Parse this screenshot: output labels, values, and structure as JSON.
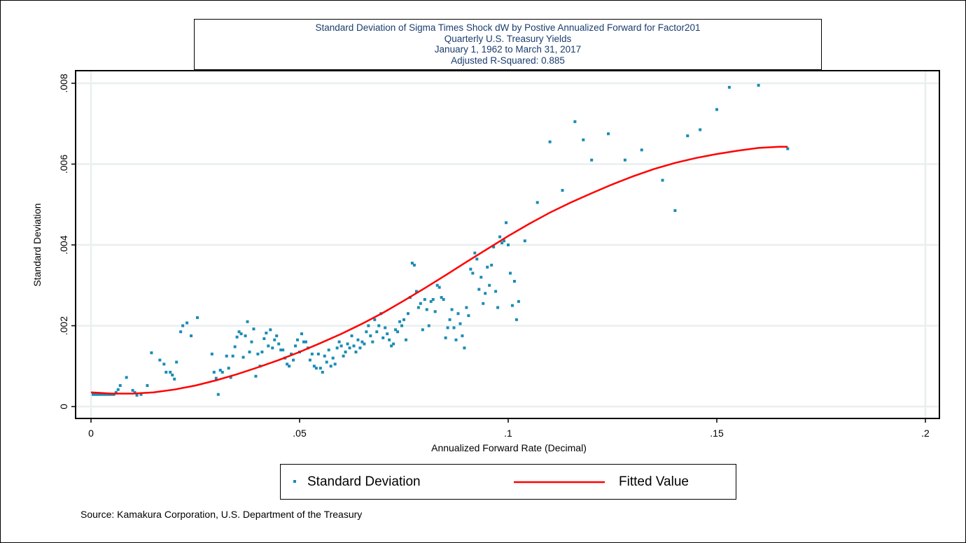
{
  "chart_data": {
    "type": "scatter",
    "title_lines": [
      "Standard Deviation of Sigma Times Shock dW by Postive Annualized Forward for Factor201",
      "Quarterly U.S. Treasury Yields",
      "January 1, 1962 to March 31, 2017",
      "Adjusted R-Squared: 0.885"
    ],
    "xlabel": "Annualized Forward Rate (Decimal)",
    "ylabel": "Standard Deviation",
    "xlim": [
      0,
      0.2
    ],
    "ylim": [
      0,
      0.008
    ],
    "x_ticks": [
      "0",
      ".05",
      ".1",
      ".15",
      ".2"
    ],
    "y_ticks": [
      "0",
      ".002",
      ".004",
      ".006",
      ".008"
    ],
    "grid": true,
    "legend_position": "bottom",
    "series": [
      {
        "name": "Standard Deviation",
        "kind": "scatter",
        "color": "#1a8cb4",
        "points": [
          [
            0.0005,
            0.0003
          ],
          [
            0.001,
            0.0003
          ],
          [
            0.0015,
            0.0003
          ],
          [
            0.002,
            0.0003
          ],
          [
            0.0025,
            0.0003
          ],
          [
            0.003,
            0.0003
          ],
          [
            0.0035,
            0.0003
          ],
          [
            0.004,
            0.0003
          ],
          [
            0.0045,
            0.0003
          ],
          [
            0.005,
            0.0003
          ],
          [
            0.0055,
            0.0003
          ],
          [
            0.006,
            0.00035
          ],
          [
            0.0065,
            0.00042
          ],
          [
            0.007,
            0.00052
          ],
          [
            0.0085,
            0.00072
          ],
          [
            0.01,
            0.0004
          ],
          [
            0.0105,
            0.00035
          ],
          [
            0.011,
            0.00028
          ],
          [
            0.012,
            0.0003
          ],
          [
            0.0135,
            0.00052
          ],
          [
            0.0145,
            0.00133
          ],
          [
            0.0165,
            0.00115
          ],
          [
            0.0175,
            0.00105
          ],
          [
            0.018,
            0.00085
          ],
          [
            0.019,
            0.00085
          ],
          [
            0.0195,
            0.00078
          ],
          [
            0.02,
            0.00068
          ],
          [
            0.0205,
            0.0011
          ],
          [
            0.0215,
            0.00185
          ],
          [
            0.022,
            0.002
          ],
          [
            0.023,
            0.00207
          ],
          [
            0.024,
            0.00175
          ],
          [
            0.0255,
            0.0022
          ],
          [
            0.029,
            0.0013
          ],
          [
            0.0295,
            0.00085
          ],
          [
            0.03,
            0.0007
          ],
          [
            0.0305,
            0.0003
          ],
          [
            0.031,
            0.0009
          ],
          [
            0.0315,
            0.00085
          ],
          [
            0.0325,
            0.00125
          ],
          [
            0.033,
            0.00095
          ],
          [
            0.0335,
            0.00072
          ],
          [
            0.034,
            0.00125
          ],
          [
            0.0345,
            0.00148
          ],
          [
            0.035,
            0.00172
          ],
          [
            0.0355,
            0.00185
          ],
          [
            0.036,
            0.0018
          ],
          [
            0.0365,
            0.00122
          ],
          [
            0.037,
            0.00175
          ],
          [
            0.0375,
            0.0021
          ],
          [
            0.038,
            0.00135
          ],
          [
            0.0385,
            0.0016
          ],
          [
            0.039,
            0.00192
          ],
          [
            0.0395,
            0.00075
          ],
          [
            0.04,
            0.0013
          ],
          [
            0.0405,
            0.001
          ],
          [
            0.041,
            0.00135
          ],
          [
            0.0415,
            0.00168
          ],
          [
            0.042,
            0.00182
          ],
          [
            0.0425,
            0.0015
          ],
          [
            0.043,
            0.0019
          ],
          [
            0.0435,
            0.00145
          ],
          [
            0.044,
            0.00165
          ],
          [
            0.0445,
            0.00175
          ],
          [
            0.045,
            0.00155
          ],
          [
            0.0455,
            0.0014
          ],
          [
            0.046,
            0.0014
          ],
          [
            0.0465,
            0.0012
          ],
          [
            0.047,
            0.00105
          ],
          [
            0.0475,
            0.001
          ],
          [
            0.048,
            0.0013
          ],
          [
            0.0485,
            0.00115
          ],
          [
            0.049,
            0.0015
          ],
          [
            0.0495,
            0.00165
          ],
          [
            0.05,
            0.00135
          ],
          [
            0.0505,
            0.0018
          ],
          [
            0.051,
            0.0016
          ],
          [
            0.0515,
            0.0016
          ],
          [
            0.052,
            0.00145
          ],
          [
            0.0525,
            0.00115
          ],
          [
            0.053,
            0.0013
          ],
          [
            0.0535,
            0.001
          ],
          [
            0.054,
            0.00095
          ],
          [
            0.0545,
            0.0013
          ],
          [
            0.055,
            0.00095
          ],
          [
            0.0555,
            0.00085
          ],
          [
            0.056,
            0.00125
          ],
          [
            0.0565,
            0.0011
          ],
          [
            0.057,
            0.0014
          ],
          [
            0.0575,
            0.001
          ],
          [
            0.058,
            0.0012
          ],
          [
            0.0585,
            0.00105
          ],
          [
            0.059,
            0.00145
          ],
          [
            0.0595,
            0.0016
          ],
          [
            0.06,
            0.0015
          ],
          [
            0.0605,
            0.00125
          ],
          [
            0.061,
            0.00135
          ],
          [
            0.0615,
            0.00155
          ],
          [
            0.062,
            0.00145
          ],
          [
            0.0625,
            0.00175
          ],
          [
            0.063,
            0.0015
          ],
          [
            0.0635,
            0.00135
          ],
          [
            0.064,
            0.00165
          ],
          [
            0.0645,
            0.00145
          ],
          [
            0.065,
            0.0016
          ],
          [
            0.0655,
            0.00155
          ],
          [
            0.066,
            0.00185
          ],
          [
            0.0665,
            0.002
          ],
          [
            0.067,
            0.00175
          ],
          [
            0.0675,
            0.0016
          ],
          [
            0.068,
            0.00215
          ],
          [
            0.0685,
            0.00185
          ],
          [
            0.069,
            0.002
          ],
          [
            0.0695,
            0.0023
          ],
          [
            0.07,
            0.0017
          ],
          [
            0.0705,
            0.00195
          ],
          [
            0.071,
            0.0018
          ],
          [
            0.0715,
            0.00165
          ],
          [
            0.072,
            0.0015
          ],
          [
            0.0725,
            0.00155
          ],
          [
            0.073,
            0.0019
          ],
          [
            0.0735,
            0.00185
          ],
          [
            0.074,
            0.0021
          ],
          [
            0.0745,
            0.002
          ],
          [
            0.075,
            0.00215
          ],
          [
            0.0755,
            0.00165
          ],
          [
            0.076,
            0.0023
          ],
          [
            0.0765,
            0.0027
          ],
          [
            0.077,
            0.00355
          ],
          [
            0.0775,
            0.0035
          ],
          [
            0.078,
            0.00285
          ],
          [
            0.0785,
            0.00245
          ],
          [
            0.079,
            0.00255
          ],
          [
            0.0795,
            0.0019
          ],
          [
            0.08,
            0.00265
          ],
          [
            0.0805,
            0.0024
          ],
          [
            0.081,
            0.002
          ],
          [
            0.0815,
            0.0026
          ],
          [
            0.082,
            0.00265
          ],
          [
            0.0825,
            0.00235
          ],
          [
            0.083,
            0.003
          ],
          [
            0.0835,
            0.00295
          ],
          [
            0.084,
            0.0027
          ],
          [
            0.0845,
            0.00265
          ],
          [
            0.085,
            0.0017
          ],
          [
            0.0855,
            0.00195
          ],
          [
            0.086,
            0.00215
          ],
          [
            0.0865,
            0.0024
          ],
          [
            0.087,
            0.00195
          ],
          [
            0.0875,
            0.00165
          ],
          [
            0.088,
            0.0023
          ],
          [
            0.0885,
            0.00205
          ],
          [
            0.089,
            0.00175
          ],
          [
            0.0895,
            0.00145
          ],
          [
            0.09,
            0.00245
          ],
          [
            0.0905,
            0.00225
          ],
          [
            0.091,
            0.0034
          ],
          [
            0.0915,
            0.0033
          ],
          [
            0.092,
            0.0038
          ],
          [
            0.0925,
            0.00365
          ],
          [
            0.093,
            0.0029
          ],
          [
            0.0935,
            0.0032
          ],
          [
            0.094,
            0.00255
          ],
          [
            0.0945,
            0.0028
          ],
          [
            0.095,
            0.00345
          ],
          [
            0.0955,
            0.003
          ],
          [
            0.096,
            0.0035
          ],
          [
            0.0965,
            0.00395
          ],
          [
            0.097,
            0.00285
          ],
          [
            0.0975,
            0.00245
          ],
          [
            0.098,
            0.0042
          ],
          [
            0.0985,
            0.00405
          ],
          [
            0.099,
            0.0041
          ],
          [
            0.0995,
            0.00455
          ],
          [
            0.1,
            0.004
          ],
          [
            0.1005,
            0.0033
          ],
          [
            0.101,
            0.0025
          ],
          [
            0.1015,
            0.0031
          ],
          [
            0.102,
            0.00215
          ],
          [
            0.1025,
            0.0026
          ],
          [
            0.104,
            0.0041
          ],
          [
            0.107,
            0.00505
          ],
          [
            0.11,
            0.00655
          ],
          [
            0.113,
            0.00535
          ],
          [
            0.116,
            0.00705
          ],
          [
            0.118,
            0.0066
          ],
          [
            0.12,
            0.0061
          ],
          [
            0.124,
            0.00675
          ],
          [
            0.128,
            0.0061
          ],
          [
            0.132,
            0.00635
          ],
          [
            0.137,
            0.0056
          ],
          [
            0.14,
            0.00485
          ],
          [
            0.143,
            0.0067
          ],
          [
            0.146,
            0.00685
          ],
          [
            0.15,
            0.00735
          ],
          [
            0.153,
            0.0079
          ],
          [
            0.16,
            0.00795
          ],
          [
            0.167,
            0.00638
          ]
        ]
      },
      {
        "name": "Fitted Value",
        "kind": "line",
        "color": "#ff0000",
        "points": [
          [
            0.0,
            0.00035
          ],
          [
            0.005,
            0.00032
          ],
          [
            0.01,
            0.00032
          ],
          [
            0.015,
            0.00035
          ],
          [
            0.02,
            0.00042
          ],
          [
            0.025,
            0.00052
          ],
          [
            0.03,
            0.00065
          ],
          [
            0.035,
            0.0008
          ],
          [
            0.04,
            0.00097
          ],
          [
            0.045,
            0.00115
          ],
          [
            0.05,
            0.00135
          ],
          [
            0.055,
            0.00157
          ],
          [
            0.06,
            0.0018
          ],
          [
            0.065,
            0.00205
          ],
          [
            0.07,
            0.00232
          ],
          [
            0.075,
            0.00262
          ],
          [
            0.08,
            0.00293
          ],
          [
            0.085,
            0.00325
          ],
          [
            0.09,
            0.00358
          ],
          [
            0.095,
            0.0039
          ],
          [
            0.1,
            0.00422
          ],
          [
            0.105,
            0.00452
          ],
          [
            0.11,
            0.0048
          ],
          [
            0.115,
            0.00505
          ],
          [
            0.12,
            0.00528
          ],
          [
            0.125,
            0.0055
          ],
          [
            0.13,
            0.0057
          ],
          [
            0.135,
            0.00588
          ],
          [
            0.14,
            0.00603
          ],
          [
            0.145,
            0.00615
          ],
          [
            0.15,
            0.00625
          ],
          [
            0.155,
            0.00633
          ],
          [
            0.16,
            0.0064
          ],
          [
            0.165,
            0.00643
          ],
          [
            0.167,
            0.00643
          ]
        ]
      }
    ]
  },
  "legend": {
    "items": [
      {
        "label": "Standard Deviation"
      },
      {
        "label": "Fitted Value"
      }
    ]
  },
  "source": "Source: Kamakura Corporation, U.S. Department of the Treasury"
}
